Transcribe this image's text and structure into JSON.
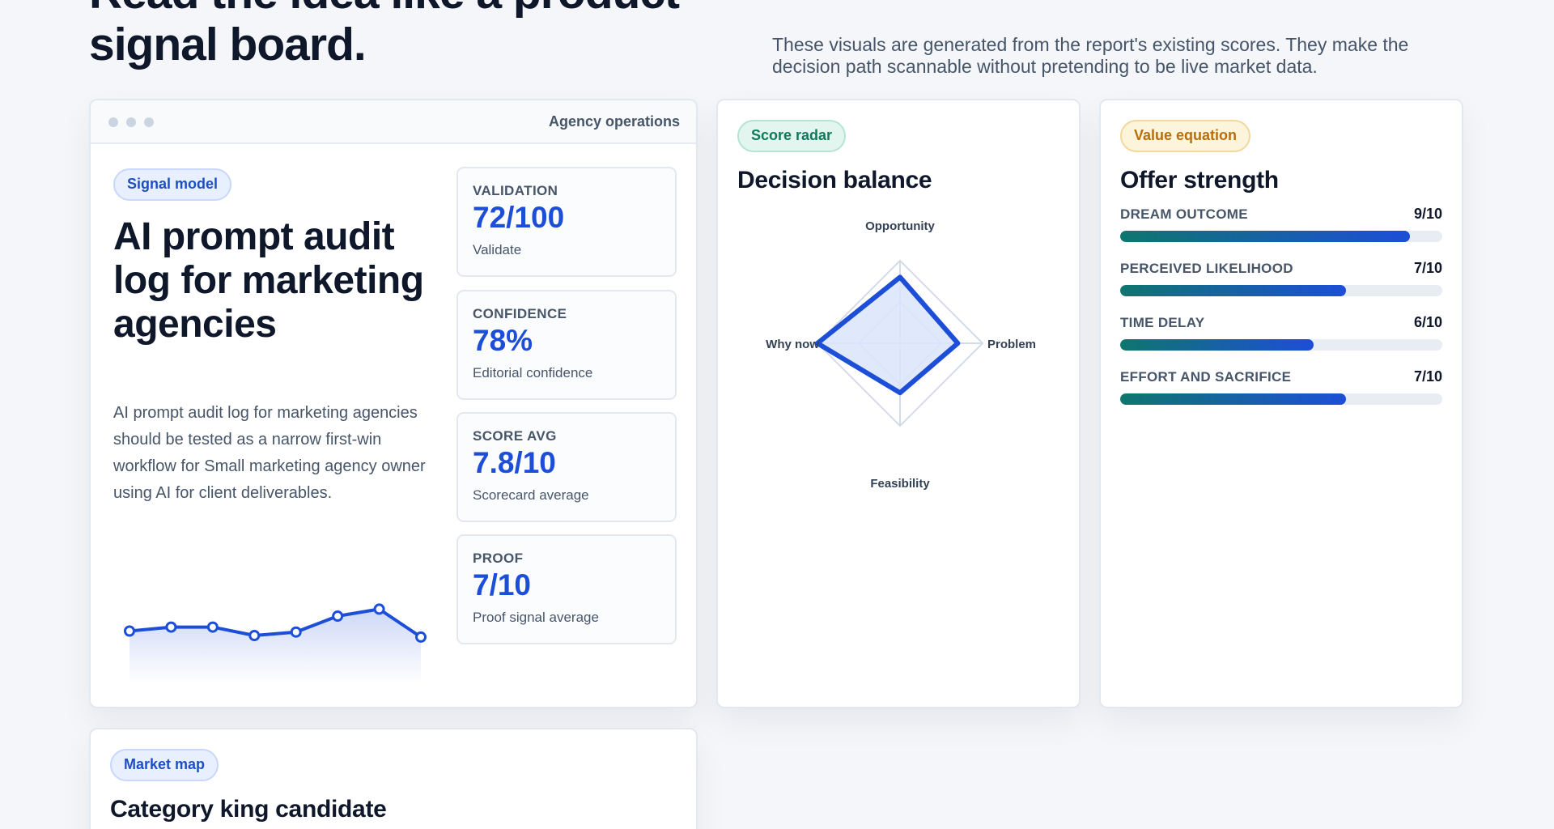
{
  "hero": {
    "title_line1": "Read the idea like a product",
    "title_line2": "signal board.",
    "subtitle": "These visuals are generated from the report's existing scores. They make the decision path scannable without pretending to be live market data."
  },
  "signal_card": {
    "window_title": "Agency operations",
    "pill": "Signal model",
    "title": "AI prompt audit log for marketing agencies",
    "description": "AI prompt audit log for marketing agencies should be tested as a narrow first-win workflow for Small marketing agency owner using AI for client deliverables.",
    "sparkline": [
      5.6,
      6.4,
      6.4,
      4.7,
      5.4,
      8.6,
      10.0,
      4.4
    ],
    "metrics": [
      {
        "label": "Validation",
        "value": "72/100",
        "note": "Validate"
      },
      {
        "label": "Confidence",
        "value": "78%",
        "note": "Editorial confidence"
      },
      {
        "label": "Score avg",
        "value": "7.8/10",
        "note": "Scorecard average"
      },
      {
        "label": "Proof",
        "value": "7/10",
        "note": "Proof signal average"
      }
    ]
  },
  "radar_card": {
    "pill": "Score radar",
    "title": "Decision balance",
    "axes": [
      {
        "label": "Opportunity",
        "value": 8
      },
      {
        "label": "Problem",
        "value": 7
      },
      {
        "label": "Feasibility",
        "value": 6
      },
      {
        "label": "Why now",
        "value": 10
      }
    ],
    "max": 10
  },
  "offer_card": {
    "pill": "Value equation",
    "title": "Offer strength",
    "bars": [
      {
        "label": "Dream outcome",
        "score": "9/10",
        "fraction": 0.9
      },
      {
        "label": "Perceived likelihood",
        "score": "7/10",
        "fraction": 0.7
      },
      {
        "label": "Time delay",
        "score": "6/10",
        "fraction": 0.6
      },
      {
        "label": "Effort and sacrifice",
        "score": "7/10",
        "fraction": 0.7
      }
    ]
  },
  "market_card": {
    "pill": "Market map",
    "title": "Category king candidate"
  },
  "colors": {
    "accent": "#1d4ed8",
    "accent_fill": "#dbe4fb",
    "teal": "#0f766e",
    "text": "#0f172a",
    "muted": "#475569"
  }
}
